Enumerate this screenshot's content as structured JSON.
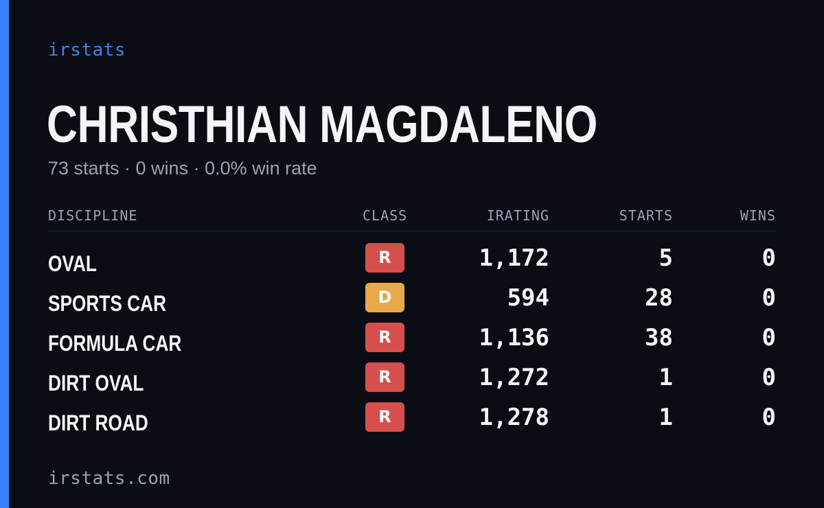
{
  "colors": {
    "accent": "#3b82f6",
    "background": "#0a0d14",
    "class_r": "#d5504c",
    "class_d": "#e9a84a"
  },
  "brand": "irstats",
  "driver_name": "CHRISTHIAN MAGDALENO",
  "summary": "73 starts · 0 wins · 0.0% win rate",
  "table": {
    "headers": {
      "discipline": "DISCIPLINE",
      "class": "CLASS",
      "irating": "IRATING",
      "starts": "STARTS",
      "wins": "WINS"
    },
    "rows": [
      {
        "discipline": "OVAL",
        "class": "R",
        "irating": "1,172",
        "starts": "5",
        "wins": "0"
      },
      {
        "discipline": "SPORTS CAR",
        "class": "D",
        "irating": "594",
        "starts": "28",
        "wins": "0"
      },
      {
        "discipline": "FORMULA CAR",
        "class": "R",
        "irating": "1,136",
        "starts": "38",
        "wins": "0"
      },
      {
        "discipline": "DIRT OVAL",
        "class": "R",
        "irating": "1,272",
        "starts": "1",
        "wins": "0"
      },
      {
        "discipline": "DIRT ROAD",
        "class": "R",
        "irating": "1,278",
        "starts": "1",
        "wins": "0"
      }
    ]
  },
  "footer": "irstats.com"
}
